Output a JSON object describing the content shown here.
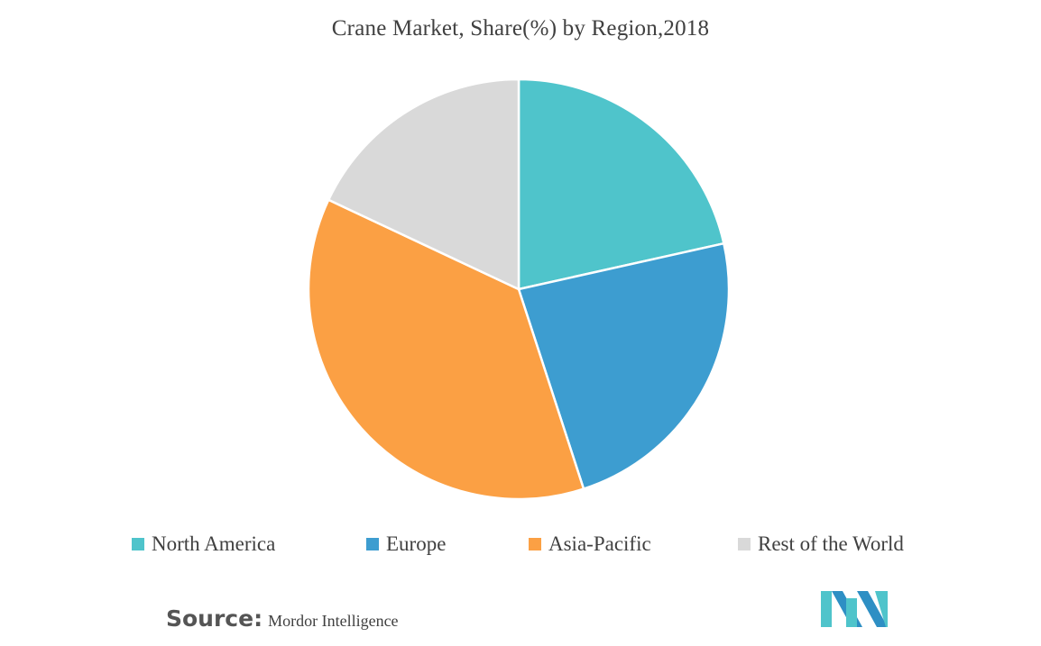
{
  "chart_data": {
    "type": "pie",
    "title": "Crane Market, Share(%) by Region,2018",
    "categories": [
      "North America",
      "Europe",
      "Asia-Pacific",
      "Rest of the World"
    ],
    "values": [
      21.5,
      23.5,
      37,
      18
    ],
    "colors": [
      "#4fc4cb",
      "#3d9dd0",
      "#fba044",
      "#d9d9d9"
    ],
    "legend_position": "bottom"
  },
  "source": {
    "label": "Source:",
    "text": "Mordor Intelligence"
  },
  "logo": {
    "colors": [
      "#4fc4cb",
      "#2e8fc4"
    ]
  }
}
